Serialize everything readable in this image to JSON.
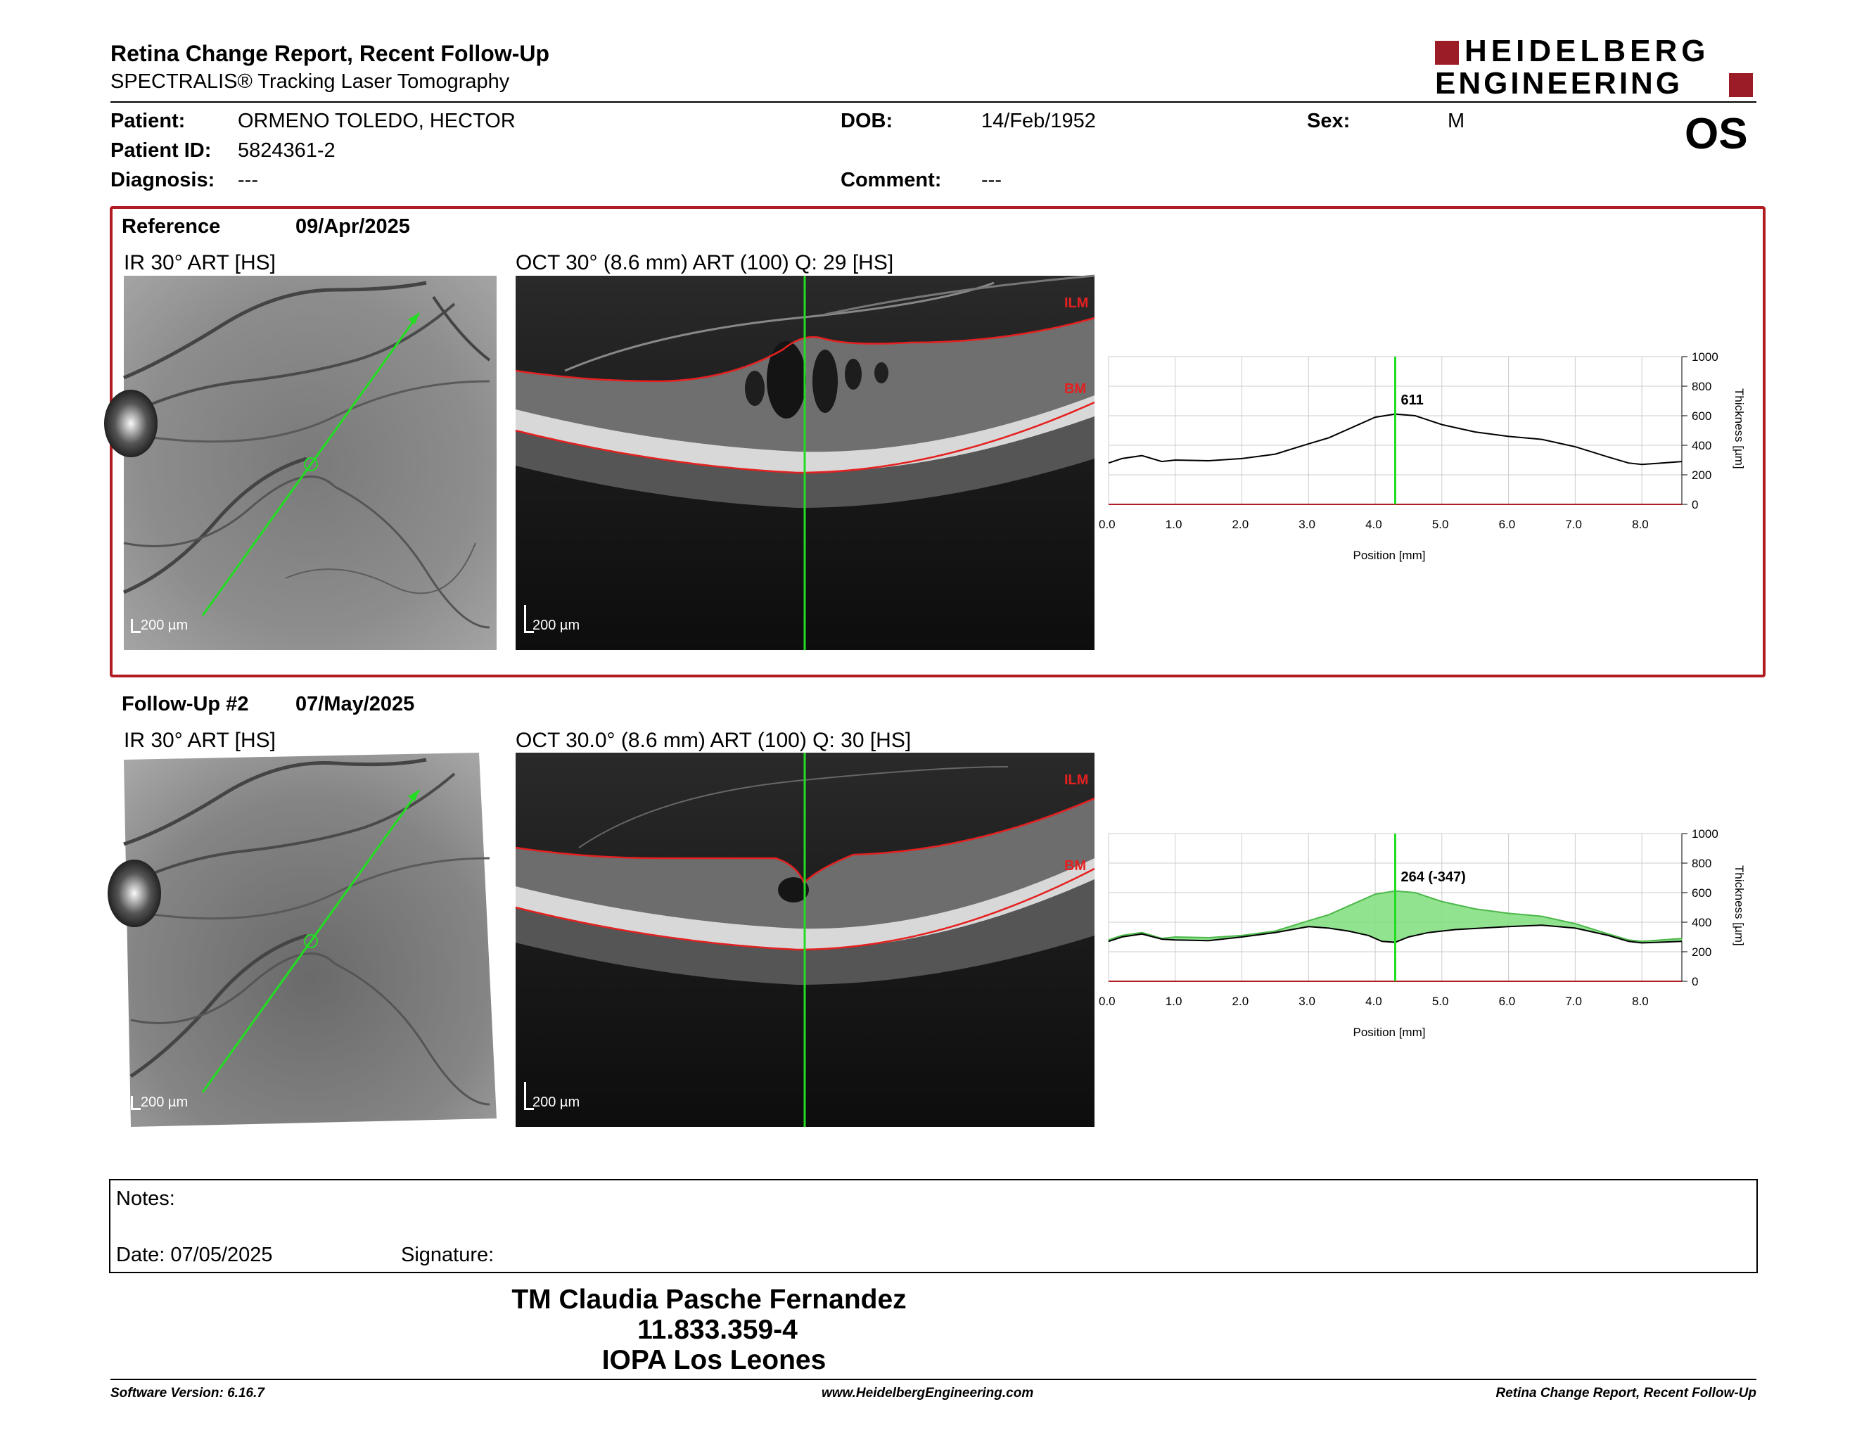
{
  "header": {
    "title": "Retina Change Report, Recent Follow-Up",
    "subtitle": "SPECTRALIS® Tracking Laser Tomography",
    "logo_line1": "HEIDELBERG",
    "logo_line2": "ENGINEERING",
    "eye": "OS"
  },
  "patient": {
    "patient_label": "Patient:",
    "patient_value": "ORMENO TOLEDO, HECTOR",
    "id_label": "Patient ID:",
    "id_value": "5824361-2",
    "diagnosis_label": "Diagnosis:",
    "diagnosis_value": "---",
    "dob_label": "DOB:",
    "dob_value": "14/Feb/1952",
    "comment_label": "Comment:",
    "comment_value": "---",
    "sex_label": "Sex:",
    "sex_value": "M"
  },
  "reference": {
    "label": "Reference",
    "date": "09/Apr/2025",
    "ir_caption": "IR 30° ART [HS]",
    "oct_caption": "OCT 30° (8.6 mm) ART (100) Q: 29 [HS]",
    "ir_scale": "200 µm",
    "oct_scale": "200 µm",
    "ilm_label": "ILM",
    "bm_label": "BM"
  },
  "followup": {
    "label": "Follow-Up #2",
    "date": "07/May/2025",
    "ir_caption": "IR 30° ART [HS]",
    "oct_caption": "OCT 30.0° (8.6 mm) ART (100) Q: 30 [HS]",
    "ir_scale": "200 µm",
    "oct_scale": "200 µm",
    "ilm_label": "ILM",
    "bm_label": "BM"
  },
  "chart_data": [
    {
      "type": "line",
      "xlabel": "Position [mm]",
      "ylabel": "Thickness [µm]",
      "xlim": [
        0,
        8.6
      ],
      "ylim": [
        0,
        1000
      ],
      "xticks": [
        "0.0",
        "1.0",
        "2.0",
        "3.0",
        "4.0",
        "5.0",
        "6.0",
        "7.0",
        "8.0"
      ],
      "yticks": [
        "0",
        "200",
        "400",
        "600",
        "800",
        "1000"
      ],
      "grid": true,
      "marker_x": 4.3,
      "marker_label": "611",
      "series": [
        {
          "x": [
            0,
            0.2,
            0.5,
            0.8,
            1.0,
            1.5,
            2.0,
            2.5,
            3.0,
            3.3,
            3.6,
            4.0,
            4.3,
            4.6,
            5.0,
            5.5,
            6.0,
            6.5,
            7.0,
            7.5,
            7.8,
            8.0,
            8.3,
            8.6
          ],
          "values": [
            280,
            310,
            330,
            290,
            300,
            295,
            310,
            340,
            410,
            450,
            510,
            590,
            611,
            600,
            540,
            490,
            460,
            440,
            390,
            320,
            280,
            270,
            280,
            290
          ]
        }
      ]
    },
    {
      "type": "area",
      "xlabel": "Position [mm]",
      "ylabel": "Thickness [µm]",
      "xlim": [
        0,
        8.6
      ],
      "ylim": [
        0,
        1000
      ],
      "xticks": [
        "0.0",
        "1.0",
        "2.0",
        "3.0",
        "4.0",
        "5.0",
        "6.0",
        "7.0",
        "8.0"
      ],
      "yticks": [
        "0",
        "200",
        "400",
        "600",
        "800",
        "1000"
      ],
      "grid": true,
      "marker_x": 4.3,
      "marker_label": "264 (-347)",
      "fill_color": "#86e083",
      "series": [
        {
          "x": [
            0,
            0.2,
            0.5,
            0.8,
            1.0,
            1.5,
            2.0,
            2.5,
            3.0,
            3.3,
            3.6,
            4.0,
            4.3,
            4.6,
            5.0,
            5.5,
            6.0,
            6.5,
            7.0,
            7.5,
            7.8,
            8.0,
            8.3,
            8.6
          ],
          "values": [
            280,
            310,
            330,
            290,
            300,
            295,
            310,
            340,
            410,
            450,
            510,
            590,
            611,
            600,
            540,
            490,
            460,
            440,
            390,
            320,
            280,
            270,
            280,
            290
          ]
        },
        {
          "x": [
            0,
            0.2,
            0.5,
            0.8,
            1.0,
            1.5,
            2.0,
            2.5,
            3.0,
            3.3,
            3.6,
            3.9,
            4.1,
            4.3,
            4.5,
            4.8,
            5.2,
            5.6,
            6.0,
            6.5,
            7.0,
            7.5,
            7.8,
            8.0,
            8.3,
            8.6
          ],
          "values": [
            270,
            300,
            320,
            285,
            280,
            275,
            300,
            330,
            370,
            360,
            340,
            310,
            270,
            264,
            300,
            330,
            350,
            360,
            370,
            380,
            360,
            310,
            270,
            260,
            265,
            270
          ]
        }
      ]
    }
  ],
  "notes": {
    "notes_label": "Notes:",
    "date_label": "Date: 07/05/2025",
    "signature_label": "Signature:"
  },
  "signature": {
    "name": "TM Claudia Pasche Fernandez",
    "rut": "11.833.359-4",
    "clinic": "IOPA Los Leones"
  },
  "footer": {
    "version": "Software Version: 6.16.7",
    "website": "www.HeidelbergEngineering.com",
    "report": "Retina Change Report, Recent Follow-Up"
  },
  "colors": {
    "accent": "#b01c22",
    "scan_line": "#22dd22",
    "fill": "#86e083"
  }
}
